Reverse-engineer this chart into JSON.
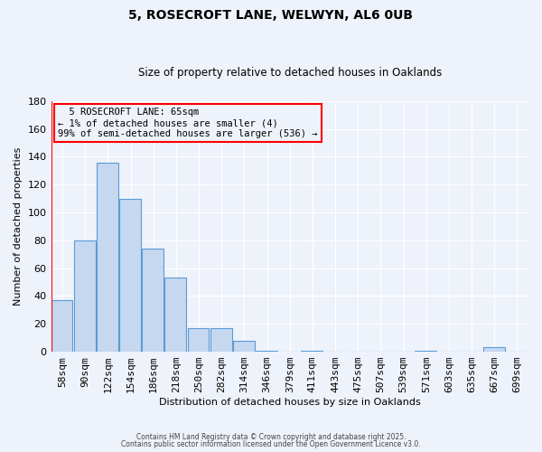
{
  "title": "5, ROSECROFT LANE, WELWYN, AL6 0UB",
  "subtitle": "Size of property relative to detached houses in Oaklands",
  "xlabel": "Distribution of detached houses by size in Oaklands",
  "ylabel": "Number of detached properties",
  "bar_labels": [
    "58sqm",
    "90sqm",
    "122sqm",
    "154sqm",
    "186sqm",
    "218sqm",
    "250sqm",
    "282sqm",
    "314sqm",
    "346sqm",
    "379sqm",
    "411sqm",
    "443sqm",
    "475sqm",
    "507sqm",
    "539sqm",
    "571sqm",
    "603sqm",
    "635sqm",
    "667sqm",
    "699sqm"
  ],
  "bar_values": [
    37,
    80,
    136,
    110,
    74,
    53,
    17,
    17,
    8,
    1,
    0,
    1,
    0,
    0,
    0,
    0,
    1,
    0,
    0,
    3,
    0
  ],
  "bar_color": "#c5d8f0",
  "bar_edge_color": "#5b9bd5",
  "ylim": [
    0,
    180
  ],
  "yticks": [
    0,
    20,
    40,
    60,
    80,
    100,
    120,
    140,
    160,
    180
  ],
  "annotation_title": "5 ROSECROFT LANE: 65sqm",
  "annotation_line1": "← 1% of detached houses are smaller (4)",
  "annotation_line2": "99% of semi-detached houses are larger (536) →",
  "footer_line1": "Contains HM Land Registry data © Crown copyright and database right 2025.",
  "footer_line2": "Contains public sector information licensed under the Open Government Licence v3.0.",
  "background_color": "#eef2fa",
  "grid_color": "#d0d8e8"
}
